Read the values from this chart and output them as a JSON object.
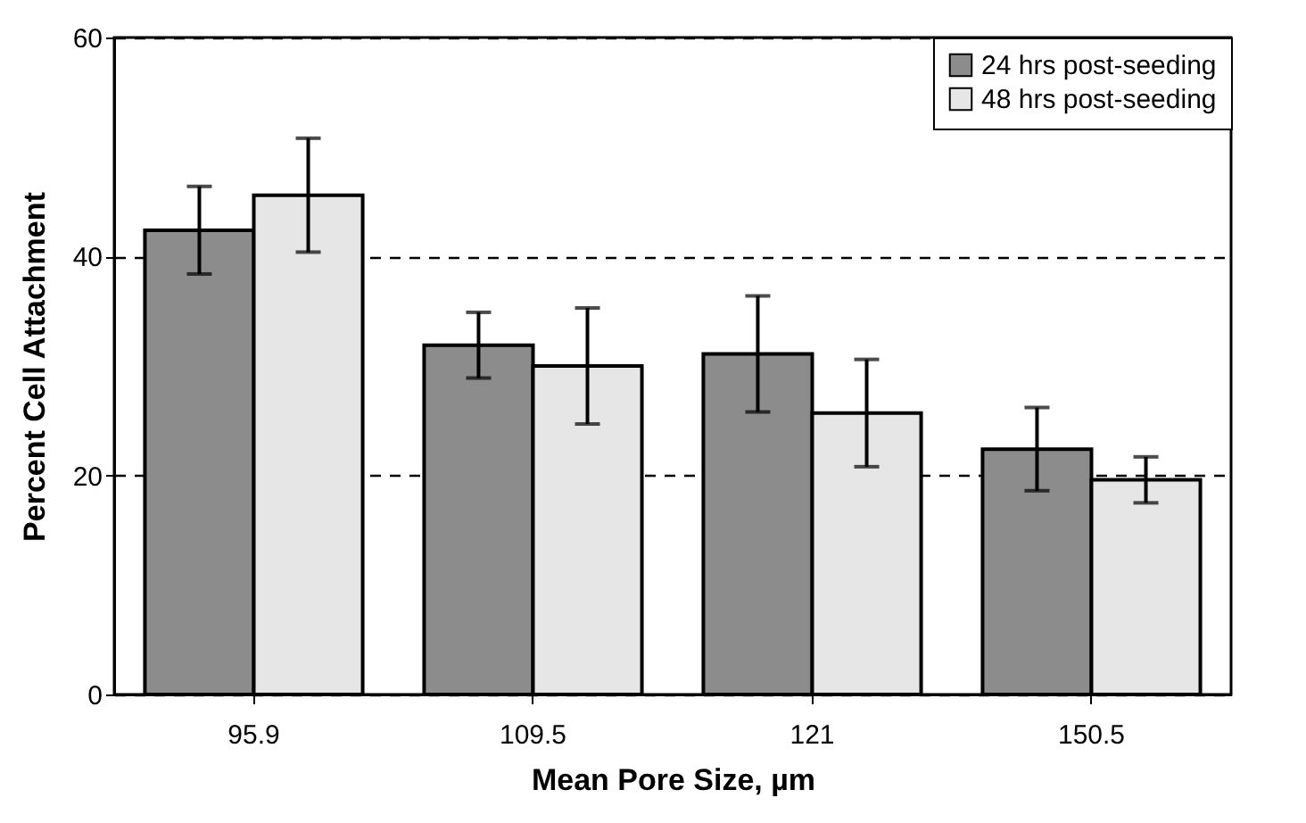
{
  "chart_data": {
    "type": "bar",
    "xlabel": "Mean Pore Size, µm",
    "ylabel": "Percent Cell Attachment",
    "categories": [
      "95.9",
      "109.5",
      "121",
      "150.5"
    ],
    "series": [
      {
        "name": "24 hrs post-seeding",
        "color": "#8c8c8c",
        "values": [
          42.4,
          31.9,
          31.1,
          22.4
        ],
        "errors": [
          4,
          3,
          5.3,
          3.8
        ]
      },
      {
        "name": "48 hrs post-seeding",
        "color": "#e6e6e6",
        "values": [
          45.6,
          30.0,
          25.7,
          19.6
        ],
        "errors": [
          5.2,
          5.3,
          4.9,
          2.1
        ]
      }
    ],
    "ylim": [
      0,
      60
    ],
    "yticks": [
      0,
      20,
      40,
      60
    ],
    "grid": "y",
    "line_style": "dashed",
    "legend": "top right"
  }
}
